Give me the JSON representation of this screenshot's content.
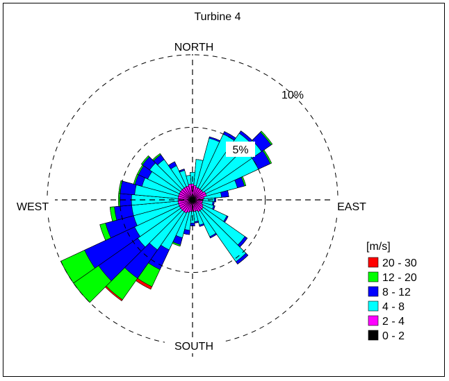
{
  "chart_data": {
    "type": "wind_rose",
    "title": "Turbine 4",
    "direction_labels": {
      "north": "NORTH",
      "east": "EAST",
      "south": "SOUTH",
      "west": "WEST"
    },
    "rings": [
      {
        "value": 5,
        "label": "5%"
      },
      {
        "value": 10,
        "label": "10%"
      }
    ],
    "rmax": 11,
    "legend": {
      "title": "[m/s]",
      "placement": "bottom-right",
      "items": [
        {
          "label": "20 - 30",
          "color": "#ff0000"
        },
        {
          "label": "12 - 20",
          "color": "#00ff00"
        },
        {
          "label": "8 - 12",
          "color": "#0000ff"
        },
        {
          "label": "4 - 8",
          "color": "#00ffff"
        },
        {
          "label": "2 - 4",
          "color": "#ff00ff"
        },
        {
          "label": "0 - 2",
          "color": "#000000"
        }
      ]
    },
    "speed_bins": [
      "0 - 2",
      "2 - 4",
      "4 - 8",
      "8 - 12",
      "12 - 20",
      "20 - 30"
    ],
    "sectors": [
      {
        "dir": 0,
        "cum": [
          0.1,
          1.1,
          1.9,
          1.9,
          1.9,
          1.9
        ]
      },
      {
        "dir": 10,
        "cum": [
          0.1,
          1.0,
          2.8,
          2.8,
          2.8,
          2.8
        ]
      },
      {
        "dir": 20,
        "cum": [
          0.1,
          0.9,
          4.4,
          4.5,
          4.5,
          4.5
        ]
      },
      {
        "dir": 30,
        "cum": [
          0.1,
          0.9,
          5.0,
          5.2,
          5.2,
          5.2
        ]
      },
      {
        "dir": 40,
        "cum": [
          0.1,
          0.9,
          5.6,
          5.8,
          5.8,
          5.8
        ]
      },
      {
        "dir": 50,
        "cum": [
          0.1,
          0.9,
          5.8,
          6.6,
          6.7,
          6.7
        ]
      },
      {
        "dir": 60,
        "cum": [
          0.1,
          1.0,
          5.0,
          5.9,
          6.0,
          6.0
        ]
      },
      {
        "dir": 70,
        "cum": [
          0.1,
          1.0,
          3.2,
          3.7,
          3.8,
          3.8
        ]
      },
      {
        "dir": 80,
        "cum": [
          0.1,
          0.8,
          2.0,
          2.5,
          2.5,
          2.5
        ]
      },
      {
        "dir": 90,
        "cum": [
          0.1,
          0.7,
          1.5,
          1.6,
          1.6,
          1.6
        ]
      },
      {
        "dir": 100,
        "cum": [
          0.1,
          0.7,
          1.4,
          1.5,
          1.5,
          1.5
        ]
      },
      {
        "dir": 110,
        "cum": [
          0.1,
          0.7,
          1.5,
          1.6,
          1.6,
          1.6
        ]
      },
      {
        "dir": 120,
        "cum": [
          0.1,
          0.8,
          2.6,
          2.7,
          2.7,
          2.7
        ]
      },
      {
        "dir": 130,
        "cum": [
          0.1,
          0.9,
          4.4,
          4.6,
          4.6,
          4.6
        ]
      },
      {
        "dir": 140,
        "cum": [
          0.1,
          0.9,
          5.2,
          5.4,
          5.4,
          5.4
        ]
      },
      {
        "dir": 150,
        "cum": [
          0.1,
          0.9,
          2.8,
          2.9,
          2.9,
          2.9
        ]
      },
      {
        "dir": 160,
        "cum": [
          0.1,
          0.8,
          1.8,
          1.9,
          1.9,
          1.9
        ]
      },
      {
        "dir": 170,
        "cum": [
          0.1,
          0.8,
          1.5,
          1.6,
          1.6,
          1.6
        ]
      },
      {
        "dir": 180,
        "cum": [
          0.1,
          0.8,
          1.6,
          1.8,
          1.8,
          1.8
        ]
      },
      {
        "dir": 190,
        "cum": [
          0.1,
          0.8,
          2.1,
          2.4,
          2.4,
          2.4
        ]
      },
      {
        "dir": 200,
        "cum": [
          0.1,
          0.9,
          2.7,
          3.2,
          3.3,
          3.3
        ]
      },
      {
        "dir": 210,
        "cum": [
          0.1,
          1.0,
          3.8,
          5.3,
          6.6,
          6.8
        ]
      },
      {
        "dir": 220,
        "cum": [
          0.1,
          1.0,
          4.2,
          6.6,
          8.4,
          8.5
        ]
      },
      {
        "dir": 230,
        "cum": [
          0.1,
          1.0,
          4.6,
          7.9,
          10.0,
          10.0
        ]
      },
      {
        "dir": 240,
        "cum": [
          0.1,
          1.0,
          4.4,
          8.2,
          10.0,
          10.0
        ]
      },
      {
        "dir": 250,
        "cum": [
          0.1,
          1.0,
          4.2,
          6.2,
          6.6,
          6.6
        ]
      },
      {
        "dir": 260,
        "cum": [
          0.1,
          1.0,
          4.2,
          5.4,
          5.7,
          5.7
        ]
      },
      {
        "dir": 270,
        "cum": [
          0.1,
          1.0,
          4.2,
          5.0,
          5.1,
          5.1
        ]
      },
      {
        "dir": 280,
        "cum": [
          0.1,
          1.0,
          4.0,
          5.0,
          5.1,
          5.1
        ]
      },
      {
        "dir": 290,
        "cum": [
          0.1,
          1.0,
          3.6,
          4.1,
          4.2,
          4.2
        ]
      },
      {
        "dir": 300,
        "cum": [
          0.1,
          1.0,
          3.4,
          4.1,
          4.2,
          4.2
        ]
      },
      {
        "dir": 310,
        "cum": [
          0.1,
          1.0,
          3.6,
          4.2,
          4.3,
          4.3
        ]
      },
      {
        "dir": 320,
        "cum": [
          0.1,
          1.0,
          3.4,
          3.8,
          3.9,
          3.9
        ]
      },
      {
        "dir": 330,
        "cum": [
          0.1,
          1.0,
          2.6,
          2.9,
          2.9,
          2.9
        ]
      },
      {
        "dir": 340,
        "cum": [
          0.1,
          1.0,
          2.1,
          2.2,
          2.2,
          2.2
        ]
      },
      {
        "dir": 350,
        "cum": [
          0.1,
          1.1,
          1.7,
          1.7,
          1.7,
          1.7
        ]
      }
    ]
  }
}
